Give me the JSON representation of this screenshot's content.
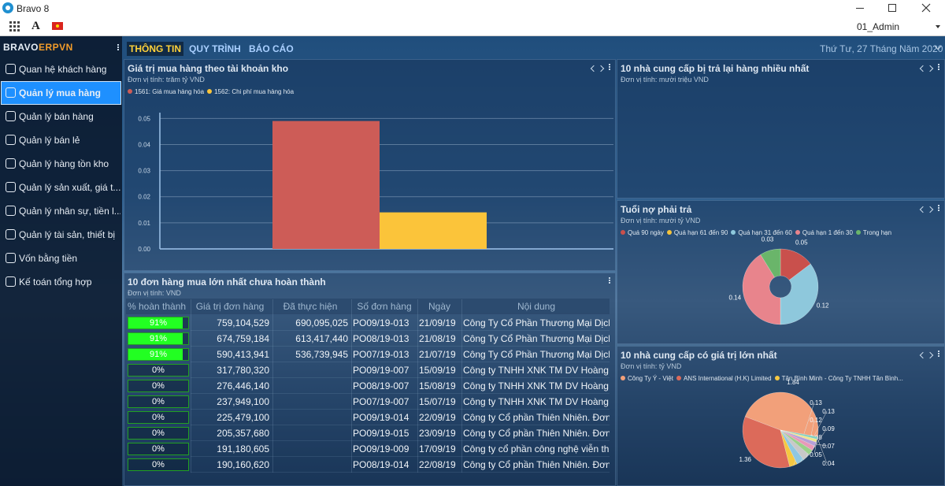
{
  "window": {
    "title": "Bravo 8",
    "user": "01_Admin",
    "font_icon": "A"
  },
  "sidebar": {
    "brand": "BRAVO",
    "brand_suffix": "ERPVN",
    "active": 1,
    "menu": [
      "Quan hệ khách hàng",
      "Quản lý mua hàng",
      "Quản lý bán hàng",
      "Quản lý bán lẻ",
      "Quản lý hàng tồn kho",
      "Quản lý sản xuất, giá t...",
      "Quản lý nhân sự, tiền l...",
      "Quản lý tài sản, thiết bị",
      "Vốn bằng tiền",
      "Kế toán tổng hợp"
    ]
  },
  "tabs": [
    "THÔNG TIN",
    "QUY TRÌNH",
    "BÁO CÁO"
  ],
  "active_tab": 0,
  "date": "Thứ Tư, 27 Tháng Năm 2020",
  "purchase_chart": {
    "type": "bar",
    "title": "Giá trị mua hàng theo tài khoản kho",
    "unit": "Đơn vị tính: trăm tỷ VND",
    "series": [
      {
        "name": "1561: Giá mua hàng hóa",
        "color": "#cd5c57",
        "value": 0.049
      },
      {
        "name": "1562: Chi phí mua hàng hóa",
        "color": "#fbc43a",
        "value": 0.014
      }
    ],
    "ylim": [
      0,
      0.051
    ],
    "yticks": [
      {
        "value": 0,
        "label": "0.00"
      },
      0.01,
      0.02,
      0.03,
      0.04,
      0.05
    ],
    "grid": true
  },
  "returns_panel": {
    "title": "10 nhà cung cấp bị trả lại hàng nhiều nhất",
    "unit": "Đơn vị tính: mười triệu VND"
  },
  "payables_aging": {
    "type": "donut",
    "title": "Tuổi nợ phải trả",
    "unit": "Đơn vị tính: mười tỷ VND",
    "slices": [
      {
        "name": "Quá 90 ngày",
        "color": "#c9504c",
        "value": 0.05
      },
      {
        "name": "Quá hạn 61 đến 90",
        "color": "#f5c33b",
        "value": null
      },
      {
        "name": "Quá hạn 31 đến 60",
        "color": "#8ec8dc",
        "value": 0.12
      },
      {
        "name": "Quá hạn 1 đến 30",
        "color": "#e8848c",
        "value": 0.14
      },
      {
        "name": "Trong hạn",
        "color": "#6ab56a",
        "value": 0.03
      }
    ]
  },
  "top_suppliers": {
    "type": "pie",
    "title": "10 nhà cung cấp có giá trị lớn nhất",
    "unit": "Đơn vị tính: tỷ VND",
    "slices": [
      {
        "name": "Công Ty Ý - Việt",
        "color": "#f2a07a",
        "value": 1.84
      },
      {
        "name": "ANS International (H.K) Limited",
        "color": "#dc6a5a",
        "value": 1.36
      },
      {
        "name": "Tân Bình Minh - Công Ty TNHH Tân Bình...",
        "color": "#f5c842",
        "value": 0.13
      },
      {
        "name": null,
        "color": "#8fc7e0",
        "value": 0.13
      },
      {
        "name": null,
        "color": "#c8c8c8",
        "value": 0.12
      },
      {
        "name": null,
        "color": "#9ad08a",
        "value": 0.09
      },
      {
        "name": null,
        "color": "#e899b8",
        "value": 0.08
      },
      {
        "name": null,
        "color": "#b5a0d8",
        "value": 0.07
      },
      {
        "name": null,
        "color": "#f0e68c",
        "value": 0.05
      },
      {
        "name": null,
        "color": "#80d0c0",
        "value": 0.04
      }
    ]
  },
  "open_orders": {
    "title": "10 đơn hàng mua lớn nhất chưa hoàn thành",
    "unit": "Đơn vị tính: VND",
    "columns": [
      "% hoàn thành",
      "Giá trị đơn hàng",
      "Đã thực hiện",
      "Số đơn hàng",
      "Ngày",
      "Nội dung"
    ],
    "rows": [
      [
        {
          "value": 91,
          "label": "91%"
        },
        "759,104,529",
        "690,095,025",
        "PO09/19-013",
        "21/09/19",
        "Công Ty Cổ Phần Thương Mại Dịch V"
      ],
      [
        {
          "value": 91,
          "label": "91%"
        },
        "674,759,184",
        "613,417,440",
        "PO08/19-013",
        "21/08/19",
        "Công Ty Cổ Phần Thương Mại Dịch V"
      ],
      [
        {
          "value": 91,
          "label": "91%"
        },
        "590,413,941",
        "536,739,945",
        "PO07/19-013",
        "21/07/19",
        "Công Ty Cổ Phần Thương Mại Dịch V"
      ],
      [
        {
          "value": 0,
          "label": "0%"
        },
        "317,780,320",
        null,
        "PO09/19-007",
        "15/09/19",
        "Công ty TNHH XNK TM DV Hoàng Vi"
      ],
      [
        {
          "value": 0,
          "label": "0%"
        },
        "276,446,140",
        null,
        "PO08/19-007",
        "15/08/19",
        "Công ty TNHH XNK TM DV Hoàng Vi"
      ],
      [
        {
          "value": 0,
          "label": "0%"
        },
        "237,949,100",
        null,
        "PO07/19-007",
        "15/07/19",
        "Công ty TNHH XNK TM DV Hoàng Vi"
      ],
      [
        {
          "value": 0,
          "label": "0%"
        },
        "225,479,100",
        null,
        "PO09/19-014",
        "22/09/19",
        "Công ty Cổ phần Thiên Nhiên. Đơn h"
      ],
      [
        {
          "value": 0,
          "label": "0%"
        },
        "205,357,680",
        null,
        "PO09/19-015",
        "23/09/19",
        "Công ty Cổ phần Thiên Nhiên. Đơn h"
      ],
      [
        {
          "value": 0,
          "label": "0%"
        },
        "191,180,605",
        null,
        "PO09/19-009",
        "17/09/19",
        "Công ty cổ phần công nghệ viễn thô"
      ],
      [
        {
          "value": 0,
          "label": "0%"
        },
        "190,160,620",
        null,
        "PO08/19-014",
        "22/08/19",
        "Công ty Cổ phần Thiên Nhiên. Đơn h"
      ]
    ]
  }
}
